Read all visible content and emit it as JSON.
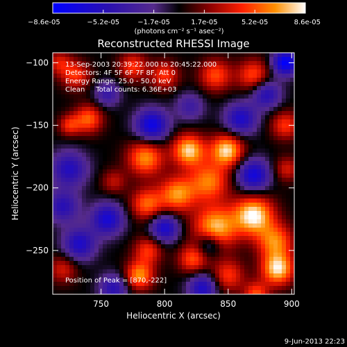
{
  "chart_data": {
    "type": "heatmap",
    "title": "Reconstructed RHESSI Image",
    "xlabel": "Heliocentric X (arcsec)",
    "ylabel": "Heliocentric Y (arcsec)",
    "xlim": [
      712,
      902
    ],
    "ylim": [
      -285,
      -92
    ],
    "xticks": [
      750,
      800,
      850,
      900
    ],
    "yticks": [
      -100,
      -150,
      -200,
      -250
    ],
    "colorbar": {
      "ticks": [
        "-8.6e-05",
        "-5.2e-05",
        "-1.7e-05",
        "1.7e-05",
        "5.2e-05",
        "8.6e-05"
      ],
      "units": "(photons cm⁻² s⁻¹ asec⁻²)",
      "min": -8.6e-05,
      "max": 8.6e-05
    },
    "annotations": [
      "13-Sep-2003 20:39:22.000 to 20:45:22.000",
      "Detectors: 4F 5F 6F 7F 8F, Att 0",
      "Energy Range: 25.0 - 50.0 keV",
      "Clean     Total counts: 6.36E+03"
    ],
    "peak_text": "Position of Peak = [870,-222]",
    "blobs": [
      {
        "x": 870,
        "y": -222,
        "v": 8.6e-05,
        "s": 11
      },
      {
        "x": 840,
        "y": -232,
        "v": 7.6e-05,
        "s": 12
      },
      {
        "x": 889,
        "y": -265,
        "v": 8e-05,
        "s": 9
      },
      {
        "x": 887,
        "y": -243,
        "v": 6e-05,
        "s": 10
      },
      {
        "x": 849,
        "y": -170,
        "v": 8e-05,
        "s": 9
      },
      {
        "x": 819,
        "y": -170,
        "v": 7.8e-05,
        "s": 9
      },
      {
        "x": 810,
        "y": -205,
        "v": 6.5e-05,
        "s": 10
      },
      {
        "x": 785,
        "y": -176,
        "v": 6.5e-05,
        "s": 10
      },
      {
        "x": 786,
        "y": -213,
        "v": 5.5e-05,
        "s": 9
      },
      {
        "x": 835,
        "y": -195,
        "v": 6e-05,
        "s": 11
      },
      {
        "x": 780,
        "y": -270,
        "v": 6.5e-05,
        "s": 8
      },
      {
        "x": 787,
        "y": -250,
        "v": 4.5e-05,
        "s": 8
      },
      {
        "x": 822,
        "y": -257,
        "v": 5e-05,
        "s": 8
      },
      {
        "x": 850,
        "y": -270,
        "v": 4.5e-05,
        "s": 9
      },
      {
        "x": 872,
        "y": -285,
        "v": 5e-05,
        "s": 7
      },
      {
        "x": 740,
        "y": -145,
        "v": 5.5e-05,
        "s": 8
      },
      {
        "x": 725,
        "y": -150,
        "v": 4e-05,
        "s": 6
      },
      {
        "x": 730,
        "y": -110,
        "v": 4.5e-05,
        "s": 8
      },
      {
        "x": 775,
        "y": -103,
        "v": 4.5e-05,
        "s": 8
      },
      {
        "x": 800,
        "y": -110,
        "v": 4.5e-05,
        "s": 8
      },
      {
        "x": 840,
        "y": -110,
        "v": 5e-05,
        "s": 9
      },
      {
        "x": 870,
        "y": -110,
        "v": 5e-05,
        "s": 9
      },
      {
        "x": 895,
        "y": -150,
        "v": 4.5e-05,
        "s": 8
      },
      {
        "x": 896,
        "y": -185,
        "v": 3.5e-05,
        "s": 7
      },
      {
        "x": 760,
        "y": -195,
        "v": 3e-05,
        "s": 7
      },
      {
        "x": 720,
        "y": -265,
        "v": 3.5e-05,
        "s": 8
      },
      {
        "x": 717,
        "y": -100,
        "v": 3.5e-05,
        "s": 7
      },
      {
        "x": 725,
        "y": -185,
        "v": -5.5e-05,
        "s": 10
      },
      {
        "x": 720,
        "y": -215,
        "v": -5e-05,
        "s": 9
      },
      {
        "x": 733,
        "y": -245,
        "v": -6e-05,
        "s": 9
      },
      {
        "x": 755,
        "y": -225,
        "v": -6.5e-05,
        "s": 9
      },
      {
        "x": 790,
        "y": -150,
        "v": -7.5e-05,
        "s": 9
      },
      {
        "x": 860,
        "y": -145,
        "v": -6e-05,
        "s": 9
      },
      {
        "x": 880,
        "y": -125,
        "v": -5.5e-05,
        "s": 8
      },
      {
        "x": 895,
        "y": -100,
        "v": -8.6e-05,
        "s": 7
      },
      {
        "x": 870,
        "y": -190,
        "v": -7e-05,
        "s": 9
      },
      {
        "x": 800,
        "y": -232,
        "v": -6.5e-05,
        "s": 8
      },
      {
        "x": 760,
        "y": -280,
        "v": -5e-05,
        "s": 8
      },
      {
        "x": 830,
        "y": -280,
        "v": -6e-05,
        "s": 8
      },
      {
        "x": 755,
        "y": -125,
        "v": -4e-05,
        "s": 7
      },
      {
        "x": 820,
        "y": -135,
        "v": -3.5e-05,
        "s": 8
      },
      {
        "x": 835,
        "y": -245,
        "v": -4.5e-05,
        "s": 7
      }
    ]
  },
  "timestamp": "9-Jun-2013 22:23"
}
